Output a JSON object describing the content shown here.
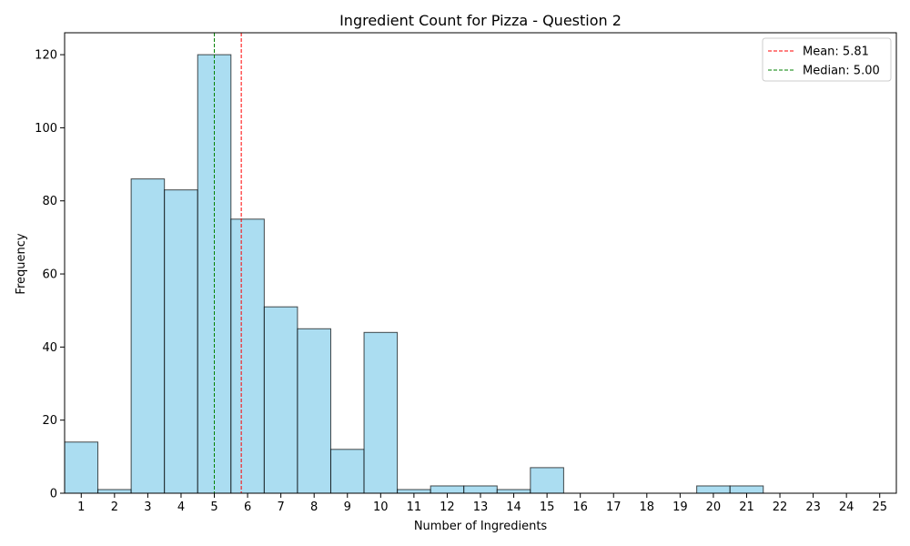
{
  "chart_data": {
    "type": "bar",
    "title": "Ingredient Count for Pizza - Question 2",
    "xlabel": "Number of Ingredients",
    "ylabel": "Frequency",
    "categories": [
      "1",
      "2",
      "3",
      "4",
      "5",
      "6",
      "7",
      "8",
      "9",
      "10",
      "11",
      "12",
      "13",
      "14",
      "15",
      "16",
      "17",
      "18",
      "19",
      "20",
      "21",
      "22",
      "23",
      "24",
      "25"
    ],
    "values": [
      14,
      1,
      86,
      83,
      120,
      75,
      51,
      45,
      12,
      44,
      1,
      2,
      2,
      1,
      7,
      0,
      0,
      0,
      0,
      2,
      2,
      0,
      0,
      0,
      0
    ],
    "xlim": [
      0.5,
      25.5
    ],
    "ylim": [
      0,
      126
    ],
    "yticks": [
      0,
      20,
      40,
      60,
      80,
      100,
      120
    ],
    "grid": false,
    "legend_position": "top-right",
    "reference_lines": [
      {
        "label": "Mean: 5.81",
        "x": 5.81,
        "color": "#ff0000",
        "style": "dashed"
      },
      {
        "label": "Median: 5.00",
        "x": 5.0,
        "color": "#008000",
        "style": "dashed"
      }
    ],
    "colors": {
      "bar_fill": "#87ceeb",
      "bar_edge": "#000000"
    }
  }
}
